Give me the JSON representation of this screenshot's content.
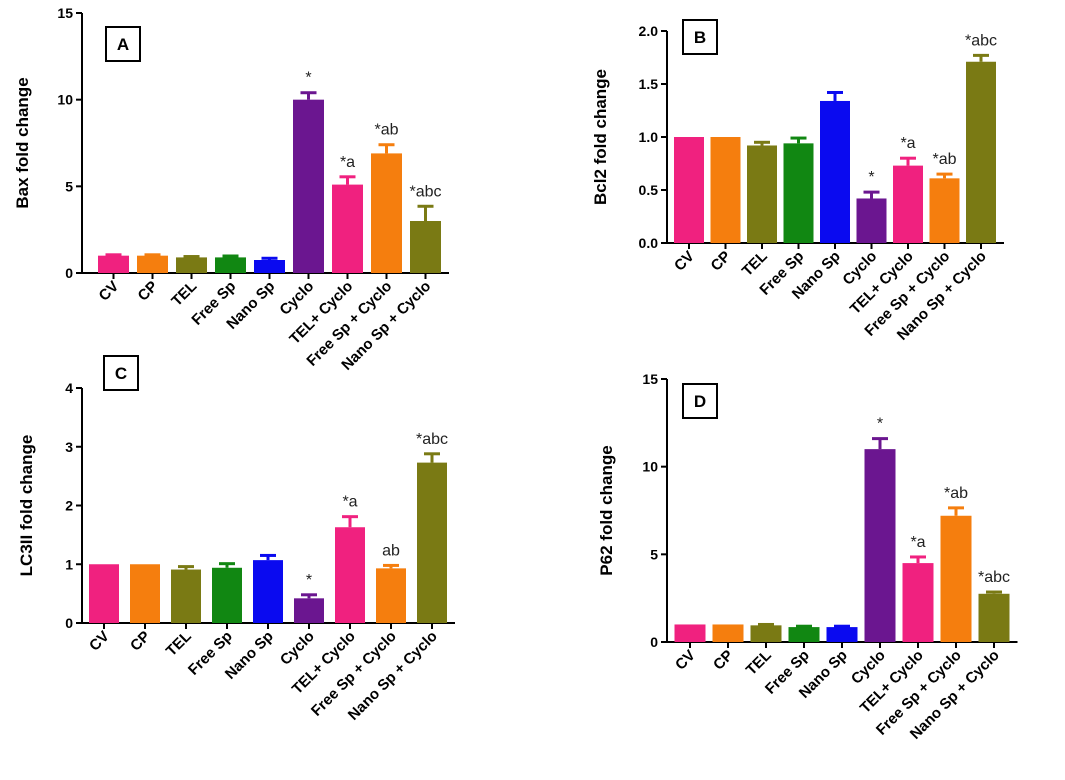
{
  "colors": [
    "#f0217f",
    "#f57e0e",
    "#7a7a14",
    "#118712",
    "#0a0af0",
    "#6b1690",
    "#f0217f",
    "#f57e0e",
    "#7a7a14"
  ],
  "chart_data": [
    {
      "type": "bar",
      "panel": "A",
      "ylabel": "Bax fold change",
      "ylim": [
        0,
        15
      ],
      "yticks": [
        "0",
        "5",
        "10",
        "15"
      ],
      "categories": [
        "CV",
        "CP",
        "TEL",
        "Free Sp",
        "Nano Sp",
        "Cyclo",
        "TEL+ Cyclo",
        "Free Sp + Cyclo",
        "Nano Sp + Cyclo"
      ],
      "values": [
        1.0,
        1.0,
        0.9,
        0.9,
        0.75,
        10.0,
        5.1,
        6.9,
        3.0
      ],
      "errors": [
        0.05,
        0.05,
        0.05,
        0.08,
        0.1,
        0.4,
        0.45,
        0.5,
        0.85
      ],
      "annotations": [
        "",
        "",
        "",
        "",
        "",
        "*",
        "*a",
        "*ab",
        "*abc"
      ]
    },
    {
      "type": "bar",
      "panel": "B",
      "ylabel": "Bcl2 fold change",
      "ylim": [
        0,
        2.0
      ],
      "yticks": [
        "0.0",
        "0.5",
        "1.0",
        "1.5",
        "2.0"
      ],
      "categories": [
        "CV",
        "CP",
        "TEL",
        "Free Sp",
        "Nano Sp",
        "Cyclo",
        "TEL+ Cyclo",
        "Free Sp + Cyclo",
        "Nano Sp + Cyclo"
      ],
      "values": [
        1.0,
        1.0,
        0.92,
        0.94,
        1.34,
        0.42,
        0.73,
        0.61,
        1.71
      ],
      "errors": [
        0.0,
        0.0,
        0.03,
        0.05,
        0.08,
        0.06,
        0.07,
        0.04,
        0.06
      ],
      "annotations": [
        "",
        "",
        "",
        "",
        "",
        "*",
        "*a",
        "*ab",
        "*abc"
      ]
    },
    {
      "type": "bar",
      "panel": "C",
      "ylabel": "LC3II fold change",
      "ylim": [
        0,
        4
      ],
      "yticks": [
        "0",
        "1",
        "2",
        "3",
        "4"
      ],
      "categories": [
        "CV",
        "CP",
        "TEL",
        "Free Sp",
        "Nano Sp",
        "Cyclo",
        "TEL+ Cyclo",
        "Free Sp + Cyclo",
        "Nano Sp + Cyclo"
      ],
      "values": [
        1.0,
        1.0,
        0.91,
        0.94,
        1.07,
        0.42,
        1.63,
        0.93,
        2.73
      ],
      "errors": [
        0.0,
        0.0,
        0.05,
        0.07,
        0.08,
        0.06,
        0.18,
        0.05,
        0.15
      ],
      "annotations": [
        "",
        "",
        "",
        "",
        "",
        "*",
        "*a",
        "ab",
        "*abc"
      ]
    },
    {
      "type": "bar",
      "panel": "D",
      "ylabel": "P62 fold change",
      "ylim": [
        0,
        15
      ],
      "yticks": [
        "0",
        "5",
        "10",
        "15"
      ],
      "categories": [
        "CV",
        "CP",
        "TEL",
        "Free Sp",
        "Nano Sp",
        "Cyclo",
        "TEL+ Cyclo",
        "Free Sp + Cyclo",
        "Nano Sp + Cyclo"
      ],
      "values": [
        1.0,
        1.0,
        0.95,
        0.85,
        0.85,
        11.0,
        4.5,
        7.2,
        2.75
      ],
      "errors": [
        0.0,
        0.0,
        0.05,
        0.05,
        0.05,
        0.6,
        0.35,
        0.45,
        0.1
      ],
      "annotations": [
        "",
        "",
        "",
        "",
        "",
        "*",
        "*a",
        "*ab",
        "*abc"
      ]
    }
  ]
}
